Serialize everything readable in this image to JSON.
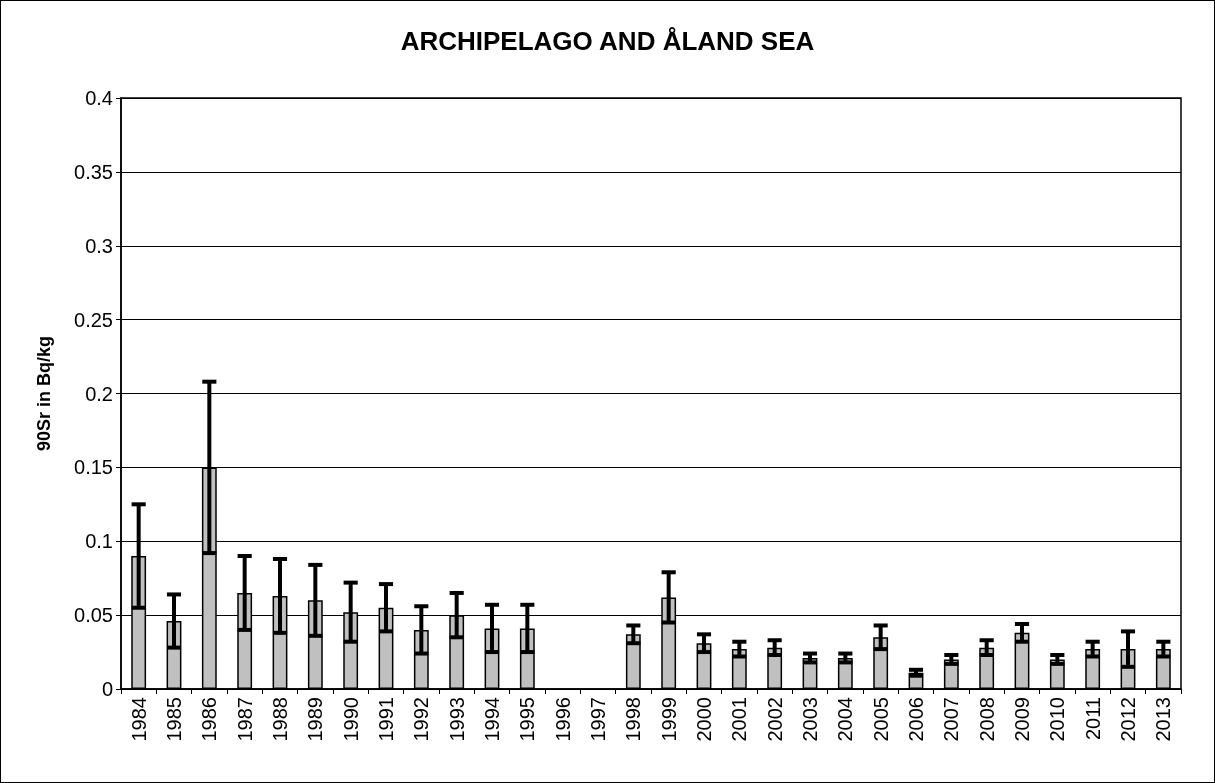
{
  "chart_data": {
    "type": "bar",
    "title": "ARCHIPELAGO AND ÅLAND SEA",
    "ylabel": "90Sr in Bq/kg",
    "categories": [
      "1984",
      "1985",
      "1986",
      "1987",
      "1988",
      "1989",
      "1990",
      "1991",
      "1992",
      "1993",
      "1994",
      "1995",
      "1996",
      "1997",
      "1998",
      "1999",
      "2000",
      "2001",
      "2002",
      "2003",
      "2004",
      "2005",
      "2006",
      "2007",
      "2008",
      "2009",
      "2010",
      "2011",
      "2012",
      "2013"
    ],
    "series": [
      {
        "color": "#c0c0c0",
        "values": [
          0.09,
          0.046,
          0.15,
          0.065,
          0.063,
          0.06,
          0.052,
          0.055,
          0.04,
          0.05,
          0.041,
          0.041,
          null,
          null,
          0.037,
          0.062,
          0.031,
          0.027,
          0.028,
          0.021,
          0.021,
          0.035,
          0.011,
          0.02,
          0.028,
          0.038,
          0.02,
          0.027,
          0.027,
          0.027
        ],
        "errors": [
          0.035,
          0.018,
          0.058,
          0.025,
          0.025,
          0.024,
          0.02,
          0.016,
          0.016,
          0.015,
          0.016,
          0.016,
          null,
          null,
          0.006,
          0.017,
          0.006,
          0.005,
          0.005,
          0.003,
          0.003,
          0.008,
          0.002,
          0.003,
          0.005,
          0.006,
          0.003,
          0.005,
          0.012,
          0.005
        ]
      }
    ],
    "ylim": [
      0,
      0.4
    ],
    "yticks": [
      0,
      0.05,
      0.1,
      0.15,
      0.2,
      0.25,
      0.3,
      0.35,
      0.4
    ],
    "grid": "y"
  }
}
